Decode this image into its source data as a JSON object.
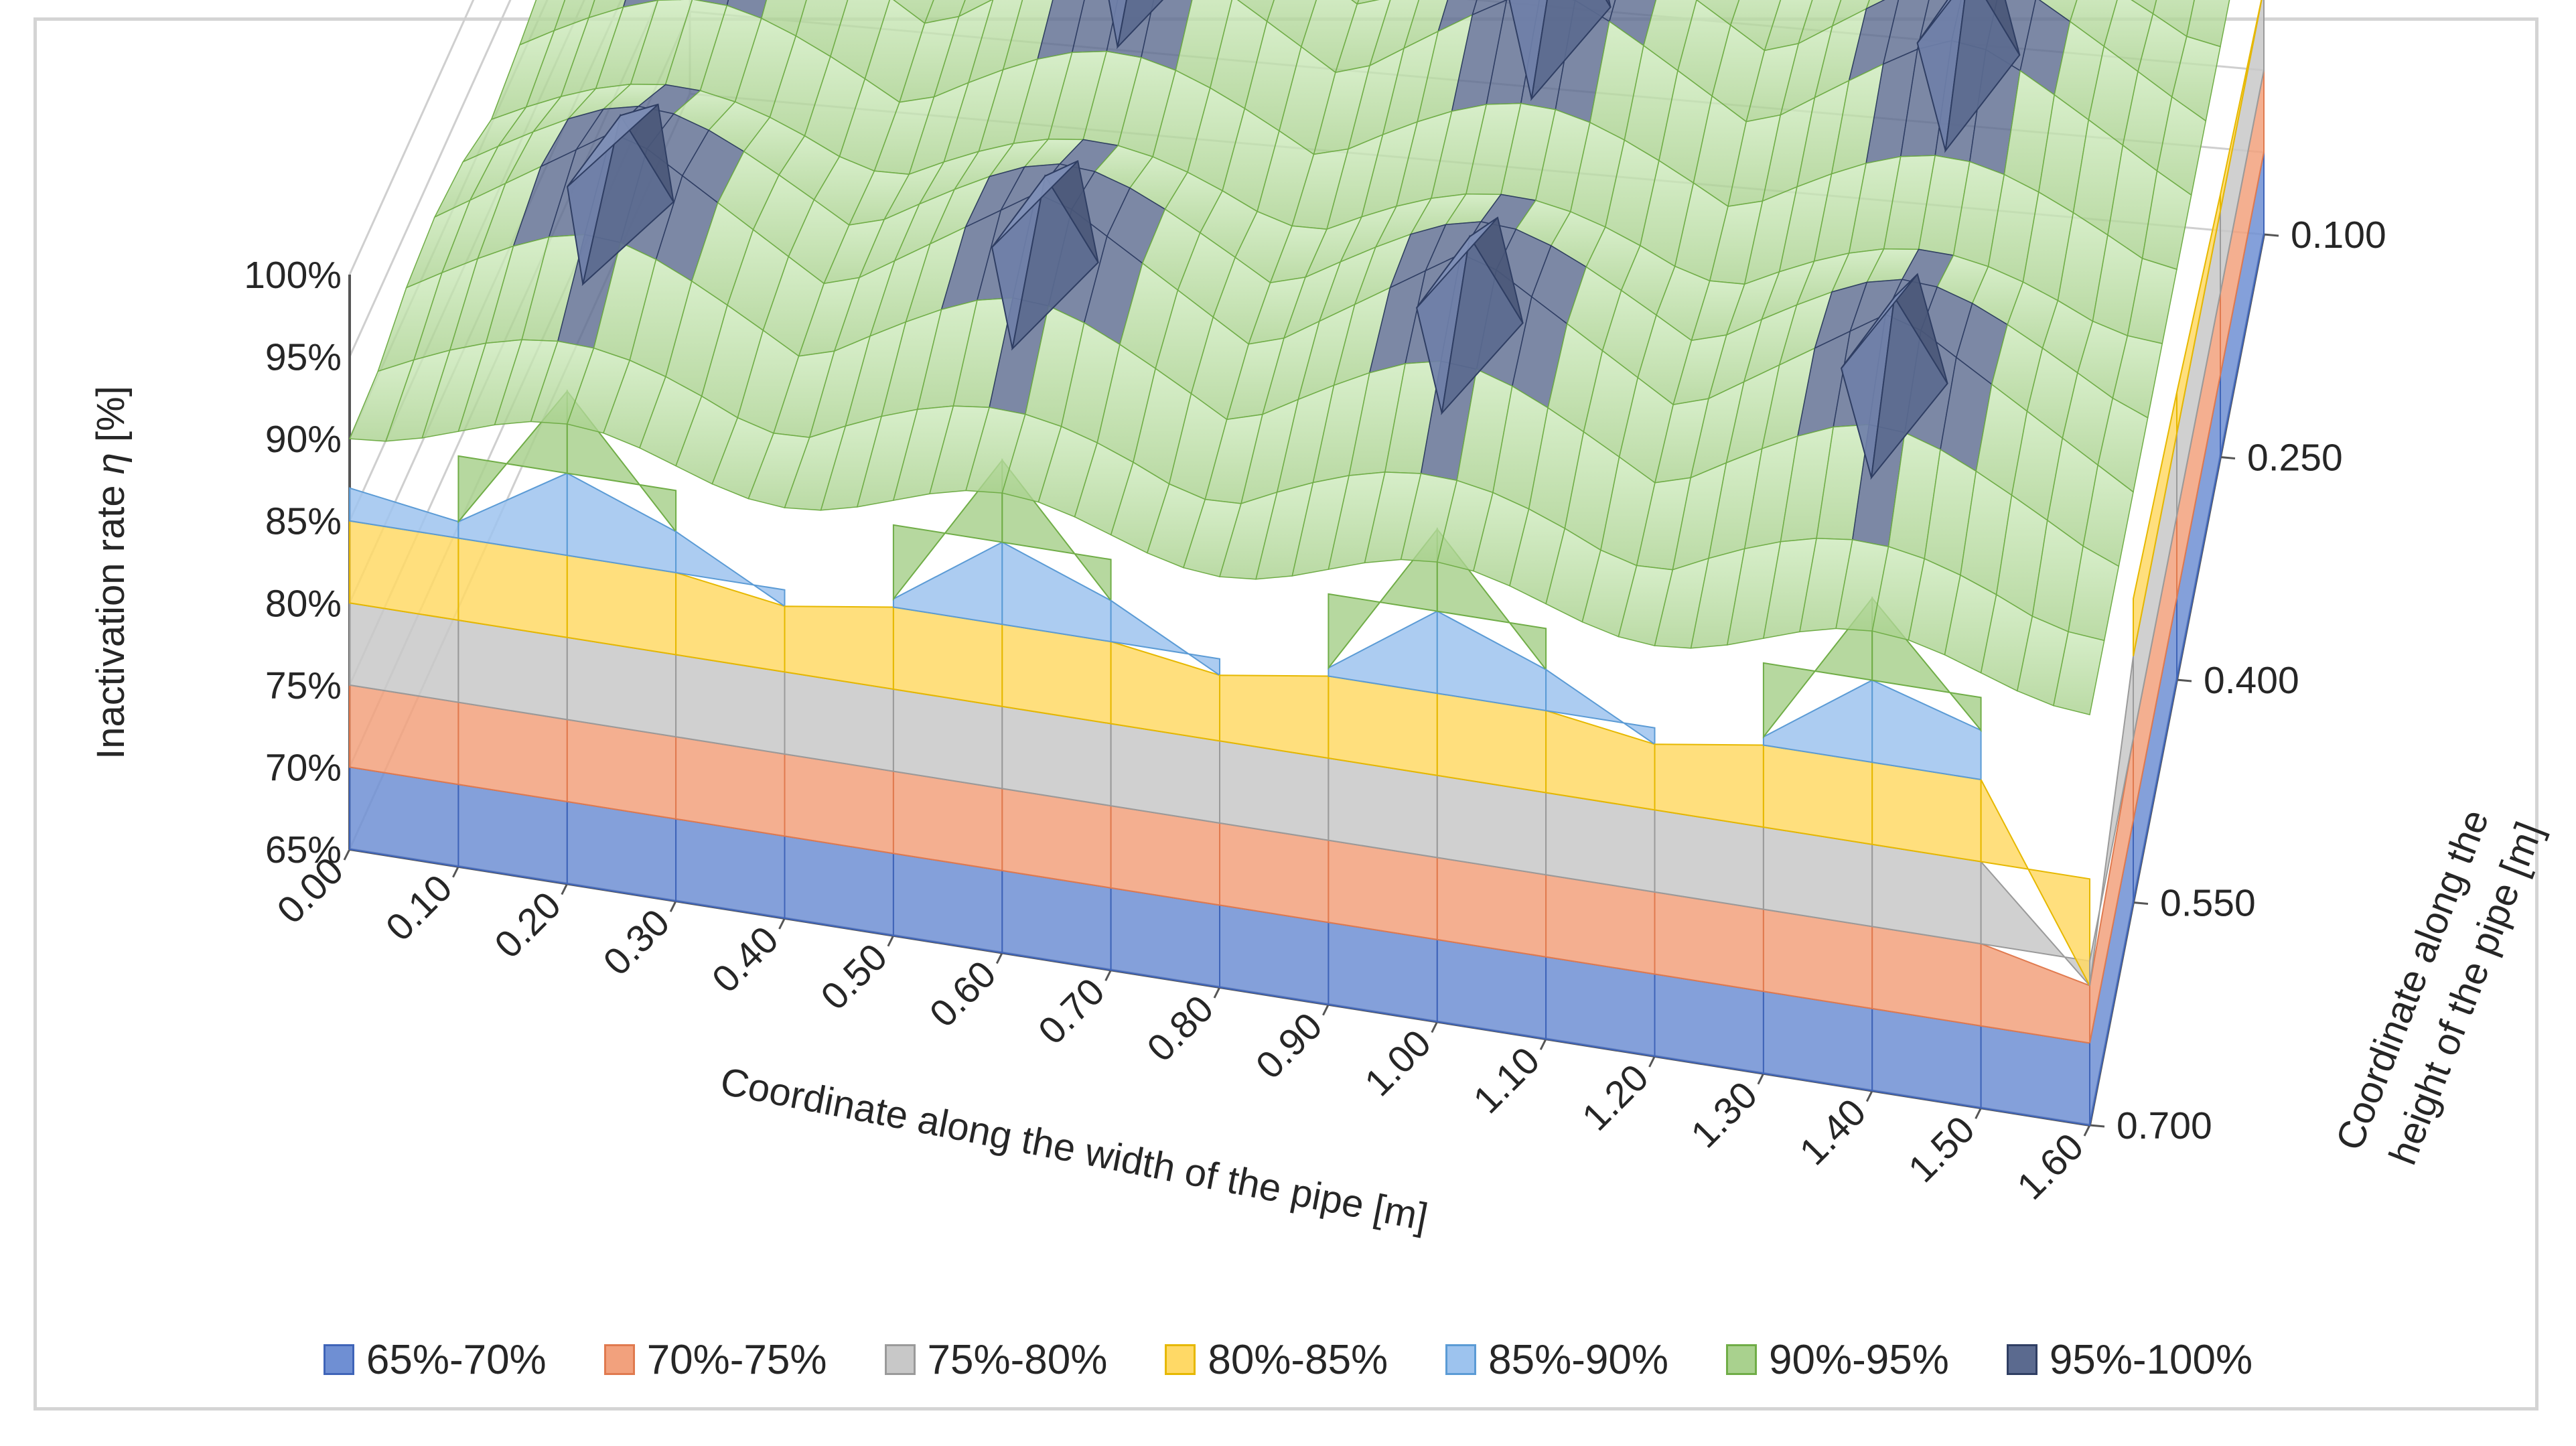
{
  "chart_data": {
    "type": "surface",
    "z_axis": {
      "label_prefix": "Inactivation rate ",
      "label_symbol": "η",
      "label_suffix": " [%]",
      "ticks": [
        "100%",
        "95%",
        "90%",
        "85%",
        "80%",
        "75%",
        "70%",
        "65%"
      ],
      "range": [
        65,
        100
      ]
    },
    "x_axis": {
      "label": "Coordinate along the width of the pipe [m]",
      "ticks": [
        "0.00",
        "0.10",
        "0.20",
        "0.30",
        "0.40",
        "0.50",
        "0.60",
        "0.70",
        "0.80",
        "0.90",
        "1.00",
        "1.10",
        "1.20",
        "1.30",
        "1.40",
        "1.50",
        "1.60"
      ],
      "range": [
        0,
        1.6
      ]
    },
    "y_axis": {
      "label_line1": "Coordinate along the",
      "label_line2": "height of the pipe [m]",
      "ticks": [
        "0.100",
        "0.250",
        "0.400",
        "0.550",
        "0.700"
      ],
      "range": [
        0.1,
        0.7
      ]
    },
    "bands": [
      {
        "name": "65%-70%",
        "range": [
          65,
          70
        ],
        "color": "#6f8fd3",
        "border": "#3f64b8"
      },
      {
        "name": "70%-75%",
        "range": [
          70,
          75
        ],
        "color": "#f2a17d",
        "border": "#e07a4f"
      },
      {
        "name": "75%-80%",
        "range": [
          75,
          80
        ],
        "color": "#c8c8c8",
        "border": "#9a9a9a"
      },
      {
        "name": "80%-85%",
        "range": [
          80,
          85
        ],
        "color": "#ffd966",
        "border": "#e6b800"
      },
      {
        "name": "85%-90%",
        "range": [
          85,
          90
        ],
        "color": "#9dc3ee",
        "border": "#5b9bd5"
      },
      {
        "name": "90%-95%",
        "range": [
          90,
          95
        ],
        "color": "#a9d18e",
        "border": "#70ad47"
      },
      {
        "name": "95%-100%",
        "range": [
          95,
          100
        ],
        "color": "#5b6a8f",
        "border": "#2f3e63"
      }
    ],
    "peaks": [
      {
        "x": 0.175,
        "y": 0.1
      },
      {
        "x": 0.575,
        "y": 0.1
      },
      {
        "x": 0.975,
        "y": 0.1
      },
      {
        "x": 1.375,
        "y": 0.1
      },
      {
        "x": 0.175,
        "y": 0.325
      },
      {
        "x": 0.575,
        "y": 0.325
      },
      {
        "x": 0.975,
        "y": 0.325
      },
      {
        "x": 1.375,
        "y": 0.325
      },
      {
        "x": 0.175,
        "y": 0.55
      },
      {
        "x": 0.575,
        "y": 0.55
      },
      {
        "x": 0.975,
        "y": 0.55
      },
      {
        "x": 1.375,
        "y": 0.55
      }
    ],
    "front_edge_profile": {
      "y": 0.7,
      "x": [
        0.0,
        0.1,
        0.2,
        0.3,
        0.4,
        0.5,
        0.6,
        0.7,
        0.8,
        0.9,
        1.0,
        1.1,
        1.2,
        1.3,
        1.4,
        1.5,
        1.6
      ],
      "values": [
        87.0,
        86.0,
        96.5,
        87.5,
        84.0,
        85.5,
        96.5,
        87.5,
        84.0,
        85.5,
        96.5,
        87.5,
        84.0,
        85.5,
        96.5,
        88.0,
        73.5
      ]
    },
    "side_edge_profile": {
      "x": 1.6,
      "y": [
        0.1,
        0.25,
        0.4,
        0.55,
        0.7
      ],
      "values": [
        80.0,
        81.0,
        82.5,
        83.5,
        73.5
      ]
    }
  }
}
